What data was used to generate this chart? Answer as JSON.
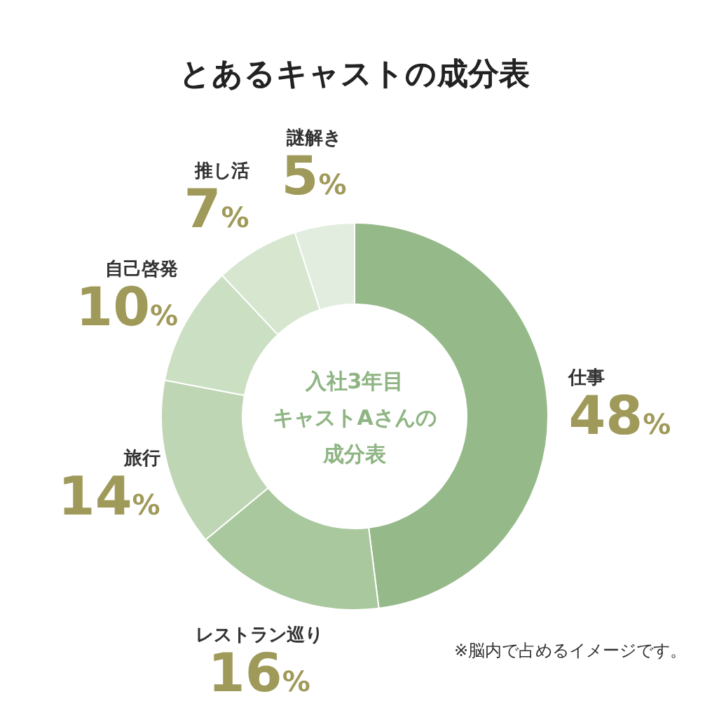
{
  "chart_data": {
    "type": "donut",
    "title": "とあるキャストの成分表",
    "categories": [
      "仕事",
      "レストラン巡り",
      "旅行",
      "自己啓発",
      "推し活",
      "謎解き"
    ],
    "values": [
      48,
      16,
      14,
      10,
      7,
      5
    ],
    "colors": [
      "#95b989",
      "#a9c89e",
      "#bfd6b5",
      "#cbdfc3",
      "#d6e6cf",
      "#e2ede0"
    ],
    "value_labels": [
      "48%",
      "16%",
      "14%",
      "10%",
      "7%",
      "5%"
    ],
    "annotations": [
      "入社3年目",
      "キャストAさんの",
      "成分表",
      "※脳内で占めるイメージです。"
    ]
  }
}
